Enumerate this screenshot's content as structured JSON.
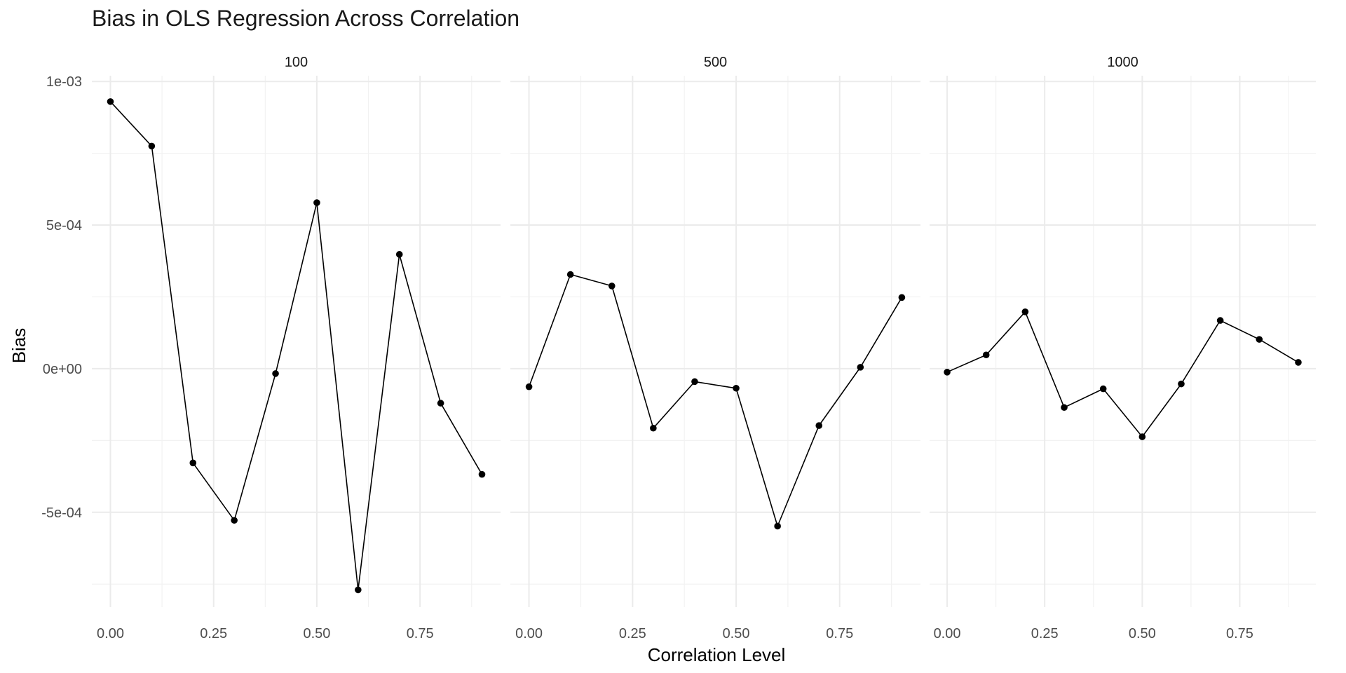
{
  "chart_data": {
    "type": "line",
    "title": "Bias in OLS Regression Across Correlation",
    "xlabel": "Correlation Level",
    "ylabel": "Bias",
    "x": [
      0.0,
      0.1,
      0.2,
      0.3,
      0.4,
      0.5,
      0.6,
      0.7,
      0.8,
      0.9
    ],
    "xlim": [
      -0.045,
      0.945
    ],
    "ylim": [
      -0.00083,
      0.00102
    ],
    "x_ticks": [
      0.0,
      0.25,
      0.5,
      0.75
    ],
    "x_tick_labels": [
      "0.00",
      "0.25",
      "0.50",
      "0.75"
    ],
    "y_ticks": [
      0.001,
      0.0005,
      0.0,
      -0.0005
    ],
    "y_tick_labels": [
      "1e-03",
      "5e-04",
      "0e+00",
      "-5e-04"
    ],
    "grid": true,
    "facets": [
      {
        "label": "100",
        "values": [
          0.00093,
          0.000775,
          -0.000328,
          -0.000528,
          -1.7e-05,
          0.000578,
          -0.00077,
          0.000398,
          -0.00012,
          -0.000368
        ]
      },
      {
        "label": "500",
        "values": [
          -6.3e-05,
          0.000328,
          0.000288,
          -0.000207,
          -4.5e-05,
          -6.8e-05,
          -0.000548,
          -0.000198,
          5e-06,
          0.000248
        ]
      },
      {
        "label": "1000",
        "values": [
          -1.2e-05,
          4.8e-05,
          0.000198,
          -0.000135,
          -7e-05,
          -0.000237,
          -5.3e-05,
          0.000168,
          0.000102,
          2.2e-05
        ]
      }
    ]
  }
}
